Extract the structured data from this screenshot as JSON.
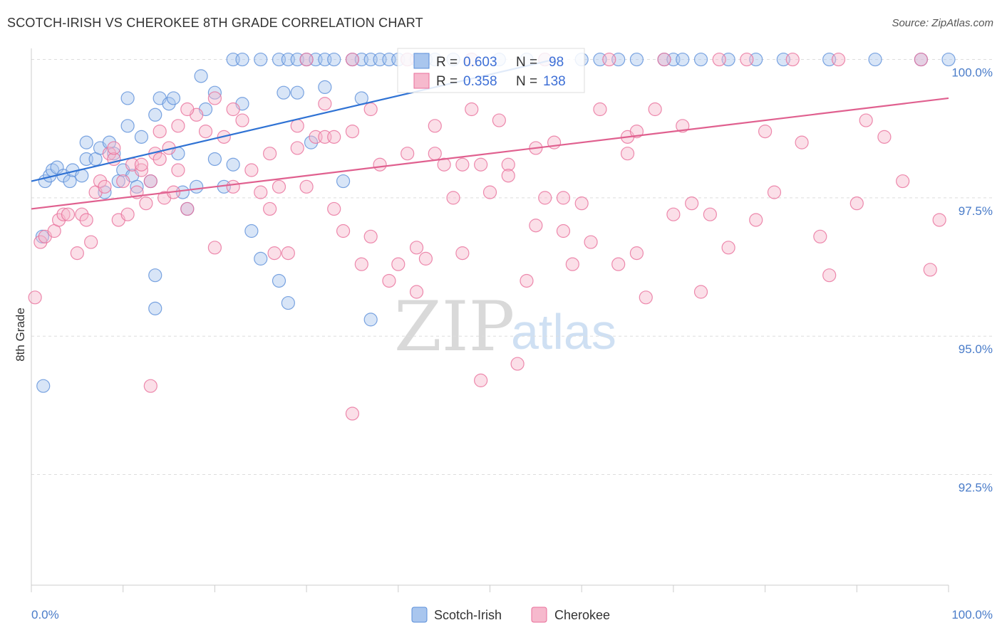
{
  "title": "SCOTCH-IRISH VS CHEROKEE 8TH GRADE CORRELATION CHART",
  "source": "Source: ZipAtlas.com",
  "watermark": {
    "part1": "ZIP",
    "part2": "atlas"
  },
  "chart_data": {
    "type": "scatter",
    "ylabel": "8th Grade",
    "xlim": [
      0,
      100
    ],
    "ylim": [
      90.5,
      100.2
    ],
    "x_tick_labels": [
      "0.0%",
      "100.0%"
    ],
    "y_ticks": [
      {
        "value": 92.5,
        "label": "92.5%"
      },
      {
        "value": 95.0,
        "label": "95.0%"
      },
      {
        "value": 97.5,
        "label": "97.5%"
      },
      {
        "value": 100.0,
        "label": "100.0%"
      }
    ],
    "grid": true,
    "legend_position": "top-center",
    "legend": [
      {
        "name": "Scotch-Irish",
        "r_label": "R = ",
        "r": "0.603",
        "n_label": "N = ",
        "n": "98"
      },
      {
        "name": "Cherokee",
        "r_label": "R = ",
        "r": "0.358",
        "n_label": "N = ",
        "n": "138"
      }
    ],
    "series": [
      {
        "name": "Scotch-Irish",
        "color": "#5b8fd9",
        "fill": "#a9c6ee",
        "trend": {
          "x": [
            0,
            57
          ],
          "y": [
            97.8,
            100.0
          ]
        },
        "points": [
          [
            1.5,
            97.8
          ],
          [
            2,
            97.9
          ],
          [
            2.3,
            98
          ],
          [
            2.8,
            98.05
          ],
          [
            3.5,
            97.9
          ],
          [
            4.2,
            97.8
          ],
          [
            4.5,
            98
          ],
          [
            5.5,
            97.9
          ],
          [
            6,
            98.2
          ],
          [
            7,
            98.2
          ],
          [
            7.5,
            98.4
          ],
          [
            8,
            97.6
          ],
          [
            8.5,
            98.5
          ],
          [
            9,
            98.3
          ],
          [
            9.5,
            97.8
          ],
          [
            10,
            98
          ],
          [
            10.5,
            98.8
          ],
          [
            11,
            97.9
          ],
          [
            11.5,
            97.7
          ],
          [
            12,
            98.6
          ],
          [
            13,
            97.8
          ],
          [
            13.5,
            99
          ],
          [
            14,
            99.3
          ],
          [
            15,
            99.2
          ],
          [
            15.5,
            99.3
          ],
          [
            16,
            98.3
          ],
          [
            16.5,
            97.6
          ],
          [
            17,
            97.3
          ],
          [
            18,
            97.7
          ],
          [
            18.5,
            99.7
          ],
          [
            19,
            99.1
          ],
          [
            20,
            98.2
          ],
          [
            21,
            97.7
          ],
          [
            22,
            98.1
          ],
          [
            23,
            99.2
          ],
          [
            24,
            96.9
          ],
          [
            25,
            96.4
          ],
          [
            27,
            96
          ],
          [
            27.5,
            99.4
          ],
          [
            28,
            95.6
          ],
          [
            29,
            99.4
          ],
          [
            30.5,
            98.5
          ],
          [
            32,
            99.5
          ],
          [
            34,
            97.8
          ],
          [
            36,
            99.3
          ],
          [
            37,
            95.3
          ],
          [
            1.2,
            96.8
          ],
          [
            1.3,
            94.1
          ],
          [
            6,
            98.5
          ],
          [
            10.5,
            99.3
          ],
          [
            13.5,
            96.1
          ],
          [
            13.5,
            95.5
          ],
          [
            20,
            99.4
          ],
          [
            22,
            100
          ],
          [
            23,
            100
          ],
          [
            25,
            100
          ],
          [
            27,
            100
          ],
          [
            28,
            100
          ],
          [
            29,
            100
          ],
          [
            30,
            100
          ],
          [
            31,
            100
          ],
          [
            32,
            100
          ],
          [
            33,
            100
          ],
          [
            35,
            100
          ],
          [
            36,
            100
          ],
          [
            37,
            100
          ],
          [
            38,
            100
          ],
          [
            39,
            100
          ],
          [
            40,
            100
          ],
          [
            41,
            100
          ],
          [
            42,
            100
          ],
          [
            43,
            100
          ],
          [
            44,
            100
          ],
          [
            46,
            100
          ],
          [
            48,
            100
          ],
          [
            51,
            100
          ],
          [
            54,
            100
          ],
          [
            56,
            100
          ],
          [
            60,
            100
          ],
          [
            62,
            100
          ],
          [
            64,
            100
          ],
          [
            66,
            100
          ],
          [
            69,
            100
          ],
          [
            70,
            100
          ],
          [
            71,
            100
          ],
          [
            73,
            100
          ],
          [
            76,
            100
          ],
          [
            79,
            100
          ],
          [
            82,
            100
          ],
          [
            87,
            100
          ],
          [
            92,
            100
          ],
          [
            97,
            100
          ],
          [
            100,
            100
          ]
        ]
      },
      {
        "name": "Cherokee",
        "color": "#e96e9a",
        "fill": "#f6b9cd",
        "trend": {
          "x": [
            0,
            100
          ],
          "y": [
            97.3,
            99.3
          ]
        },
        "points": [
          [
            0.4,
            95.7
          ],
          [
            1,
            96.7
          ],
          [
            1.5,
            96.8
          ],
          [
            2.5,
            96.9
          ],
          [
            3,
            97.1
          ],
          [
            3.5,
            97.2
          ],
          [
            4,
            97.2
          ],
          [
            5,
            96.5
          ],
          [
            5.5,
            97.2
          ],
          [
            6,
            97.1
          ],
          [
            6.5,
            96.7
          ],
          [
            7,
            97.6
          ],
          [
            7.5,
            97.8
          ],
          [
            8,
            97.7
          ],
          [
            8.5,
            98.3
          ],
          [
            9,
            98.2
          ],
          [
            9.5,
            97.1
          ],
          [
            10,
            97.8
          ],
          [
            10.5,
            97.2
          ],
          [
            11,
            98.1
          ],
          [
            11.5,
            97.6
          ],
          [
            12,
            98
          ],
          [
            12.5,
            97.4
          ],
          [
            13,
            97.8
          ],
          [
            13.5,
            98.3
          ],
          [
            14,
            98.7
          ],
          [
            14.5,
            97.5
          ],
          [
            15,
            98.4
          ],
          [
            15.5,
            97.6
          ],
          [
            16,
            98
          ],
          [
            17,
            97.3
          ],
          [
            18,
            99
          ],
          [
            19,
            98.7
          ],
          [
            20,
            96.6
          ],
          [
            21,
            98.6
          ],
          [
            22,
            97.7
          ],
          [
            23,
            98.9
          ],
          [
            24,
            98
          ],
          [
            25,
            97.6
          ],
          [
            26,
            97.3
          ],
          [
            26.5,
            96.5
          ],
          [
            27,
            97.7
          ],
          [
            28,
            96.5
          ],
          [
            29,
            98.4
          ],
          [
            30,
            97.7
          ],
          [
            31,
            98.6
          ],
          [
            32,
            99.2
          ],
          [
            33,
            97.3
          ],
          [
            34,
            96.9
          ],
          [
            35,
            98.7
          ],
          [
            36,
            96.3
          ],
          [
            37,
            96.8
          ],
          [
            38,
            98.1
          ],
          [
            39,
            96
          ],
          [
            40,
            96.3
          ],
          [
            41,
            98.3
          ],
          [
            42,
            96.6
          ],
          [
            44,
            98.3
          ],
          [
            45,
            98.1
          ],
          [
            46,
            97.5
          ],
          [
            47,
            98.1
          ],
          [
            48,
            99.1
          ],
          [
            49,
            98.1
          ],
          [
            50,
            97.6
          ],
          [
            51,
            98.9
          ],
          [
            52,
            98.1
          ],
          [
            53,
            94.5
          ],
          [
            54,
            96
          ],
          [
            55,
            98.4
          ],
          [
            56,
            97.5
          ],
          [
            57,
            98.5
          ],
          [
            58,
            97.5
          ],
          [
            59,
            96.3
          ],
          [
            60,
            97.4
          ],
          [
            61,
            96.7
          ],
          [
            62,
            99.1
          ],
          [
            64,
            96.3
          ],
          [
            65,
            98.6
          ],
          [
            66,
            98.7
          ],
          [
            67,
            95.7
          ],
          [
            68,
            99.1
          ],
          [
            70,
            97.2
          ],
          [
            71,
            98.8
          ],
          [
            73,
            95.8
          ],
          [
            76,
            96.6
          ],
          [
            80,
            98.7
          ],
          [
            87,
            96.1
          ],
          [
            93,
            98.6
          ],
          [
            97,
            100
          ],
          [
            35,
            93.6
          ],
          [
            49,
            94.2
          ],
          [
            13,
            94.1
          ],
          [
            30,
            100
          ],
          [
            35,
            100
          ],
          [
            41,
            100
          ],
          [
            48,
            100
          ],
          [
            56,
            100
          ],
          [
            63,
            100
          ],
          [
            69,
            100
          ],
          [
            75,
            100
          ],
          [
            78,
            100
          ],
          [
            83,
            100
          ],
          [
            88,
            100
          ],
          [
            22,
            99.1
          ],
          [
            20,
            99.3
          ],
          [
            17,
            99.1
          ],
          [
            16,
            98.8
          ],
          [
            14,
            98.2
          ],
          [
            12,
            98.1
          ],
          [
            9,
            98.4
          ],
          [
            32,
            98.6
          ],
          [
            37,
            99.1
          ],
          [
            44,
            98.8
          ],
          [
            26,
            98.3
          ],
          [
            29,
            98.8
          ],
          [
            33,
            98.6
          ],
          [
            52,
            97.9
          ],
          [
            65,
            98.3
          ],
          [
            72,
            97.4
          ],
          [
            79,
            97.1
          ],
          [
            84,
            98.5
          ],
          [
            90,
            97.4
          ],
          [
            98,
            96.2
          ],
          [
            47,
            96.5
          ],
          [
            43,
            96.4
          ],
          [
            55,
            97
          ],
          [
            58,
            96.9
          ],
          [
            66,
            96.5
          ],
          [
            74,
            97.2
          ],
          [
            81,
            97.6
          ],
          [
            86,
            96.8
          ],
          [
            91,
            98.9
          ],
          [
            95,
            97.8
          ],
          [
            99,
            97.1
          ],
          [
            42,
            95.8
          ]
        ]
      }
    ]
  }
}
